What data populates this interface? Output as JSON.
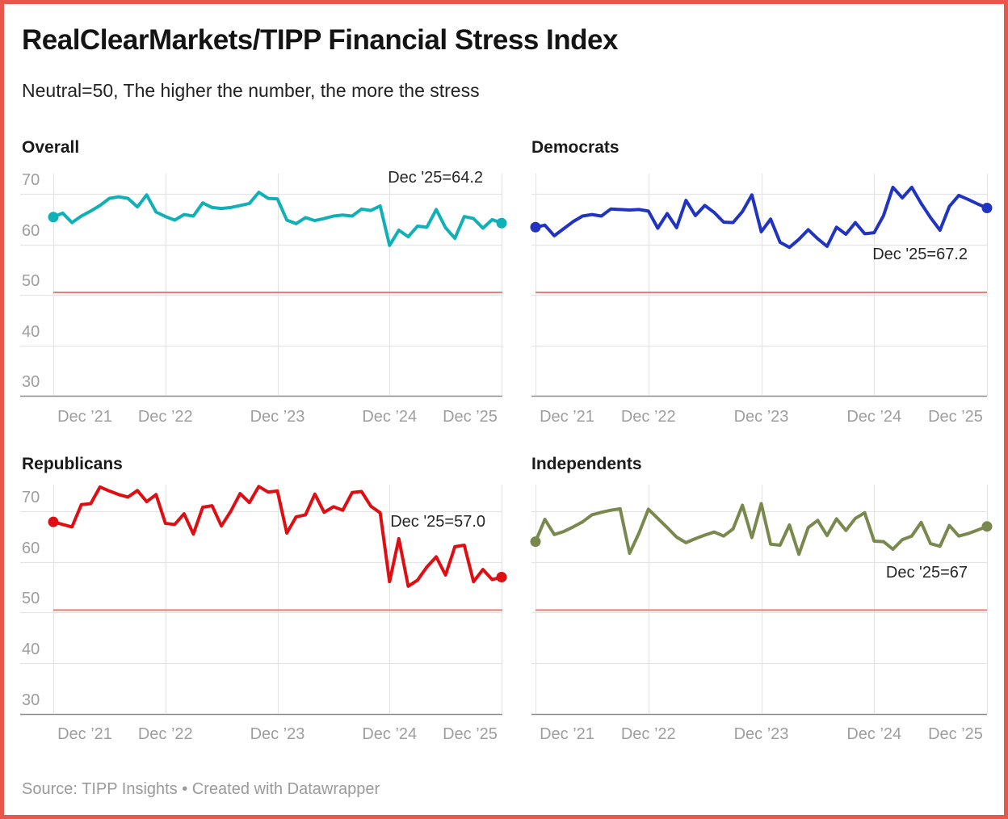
{
  "header": {
    "title": "RealClearMarkets/TIPP Financial Stress Index",
    "subtitle": "Neutral=50, The higher the number, the more the stress"
  },
  "footer": {
    "source": "Source: TIPP Insights • Created with Datawrapper"
  },
  "colors": {
    "border": "#e8574c",
    "reference_line": "#ee7c72",
    "grid": "#e4e4e4",
    "baseline": "#8a8a8a",
    "axis_text": "#9e9e9e",
    "overall": "#0fb0b7",
    "democrats": "#2033c1",
    "republicans": "#df0e12",
    "independents": "#79894e"
  },
  "axis": {
    "y_ticks": [
      "70",
      "60",
      "50",
      "40",
      "30"
    ],
    "y_tick_values": [
      70,
      60,
      50,
      40,
      30
    ],
    "x_ticks": [
      "Dec ’21",
      "Dec ’22",
      "Dec ’23",
      "Dec ’24",
      "Dec ’25"
    ],
    "ylim": [
      30,
      75
    ],
    "reference_line": 50,
    "grid": true
  },
  "chart_data": [
    {
      "type": "line",
      "title": "Overall",
      "color_key": "overall",
      "annotation": "Dec '25=64.2",
      "x_start": "Dec 2021",
      "x_end": "Dec 2025",
      "x_step": "month",
      "values": [
        65.4,
        66.2,
        64.3,
        65.6,
        66.6,
        67.7,
        69.1,
        69.4,
        69.1,
        67.4,
        69.8,
        66.4,
        65.5,
        64.8,
        65.9,
        65.6,
        68.2,
        67.3,
        67.1,
        67.3,
        67.7,
        68.1,
        70.3,
        69.1,
        69.0,
        64.8,
        64.1,
        65.3,
        64.7,
        65.1,
        65.6,
        65.8,
        65.6,
        67.0,
        66.7,
        67.6,
        59.8,
        62.8,
        61.5,
        63.6,
        63.4,
        66.9,
        63.3,
        61.2,
        65.5,
        65.1,
        63.2,
        64.9,
        64.2
      ]
    },
    {
      "type": "line",
      "title": "Democrats",
      "color_key": "democrats",
      "annotation": "Dec '25=67.2",
      "x_start": "Dec 2021",
      "x_end": "Dec 2025",
      "x_step": "month",
      "values": [
        63.4,
        63.8,
        61.7,
        63.1,
        64.5,
        65.6,
        65.9,
        65.6,
        67.0,
        66.9,
        66.8,
        66.9,
        66.6,
        63.2,
        66.1,
        63.3,
        68.7,
        65.7,
        67.7,
        66.3,
        64.4,
        64.3,
        66.5,
        69.8,
        62.5,
        65.0,
        60.4,
        59.4,
        61.0,
        62.9,
        61.1,
        59.6,
        63.4,
        62.0,
        64.3,
        62.1,
        62.3,
        65.7,
        71.3,
        69.2,
        71.3,
        68.1,
        65.3,
        62.8,
        67.5,
        69.7,
        68.9,
        68.0,
        67.2
      ]
    },
    {
      "type": "line",
      "title": "Republicans",
      "color_key": "republicans",
      "annotation": "Dec '25=57.0",
      "x_start": "Dec 2021",
      "x_end": "Dec 2025",
      "x_step": "month",
      "values": [
        67.9,
        67.4,
        66.9,
        71.3,
        71.5,
        74.8,
        74.0,
        73.3,
        72.8,
        74.1,
        71.9,
        73.3,
        67.6,
        67.4,
        69.5,
        65.5,
        70.8,
        71.1,
        67.1,
        70.0,
        73.5,
        71.7,
        74.9,
        73.8,
        74.0,
        65.7,
        68.9,
        69.3,
        73.4,
        69.8,
        70.9,
        70.2,
        73.7,
        73.9,
        71.0,
        69.7,
        56.1,
        64.6,
        55.2,
        56.4,
        59.0,
        61.0,
        57.4,
        63.0,
        63.3,
        56.1,
        58.5,
        56.5,
        57.0
      ]
    },
    {
      "type": "line",
      "title": "Independents",
      "color_key": "independents",
      "annotation": "Dec '25=67",
      "x_start": "Dec 2021",
      "x_end": "Dec 2025",
      "x_step": "month",
      "values": [
        64.0,
        68.4,
        65.4,
        66.0,
        66.9,
        67.9,
        69.3,
        69.8,
        70.2,
        70.5,
        61.7,
        65.7,
        70.4,
        68.6,
        66.8,
        64.9,
        63.8,
        64.6,
        65.3,
        65.9,
        65.1,
        66.5,
        71.2,
        64.8,
        71.5,
        63.5,
        63.3,
        67.3,
        61.5,
        66.8,
        68.2,
        65.2,
        68.5,
        66.2,
        68.6,
        69.7,
        64.1,
        64.0,
        62.5,
        64.4,
        65.1,
        67.8,
        63.6,
        63.1,
        67.2,
        65.1,
        65.6,
        66.3,
        67.0
      ]
    }
  ]
}
